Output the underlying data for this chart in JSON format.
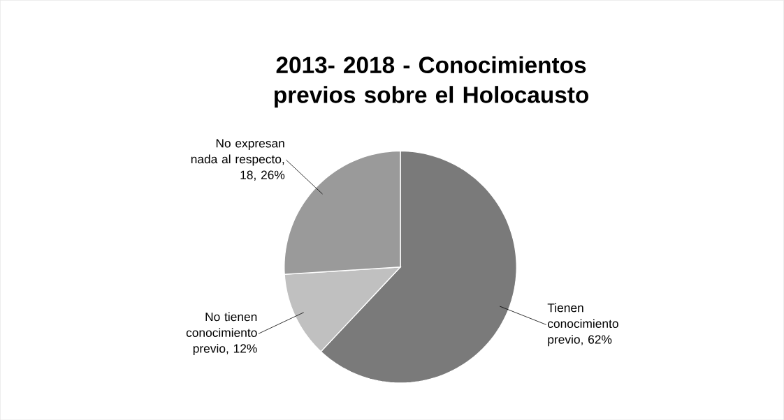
{
  "chart_data": {
    "type": "pie",
    "title": "2013- 2018 - Conocimientos previos  sobre el Holocausto",
    "categories": [
      "Tienen conocimiento previo, 62%",
      "No tienen conocimiento previo, 12%",
      "No expresan nada al respecto, 18, 26%"
    ],
    "values": [
      62,
      12,
      26
    ],
    "colors": [
      "#7a7a7a",
      "#c0c0c0",
      "#9a9a9a"
    ]
  }
}
